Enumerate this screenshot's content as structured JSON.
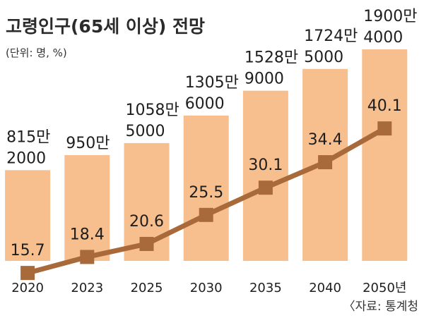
{
  "chart_data": {
    "type": "bar",
    "title": "고령인구(65세 이상) 전망",
    "unit_note": "(단위: 명, %)",
    "source": "〈자료: 통계청",
    "categories": [
      "2020",
      "2023",
      "2025",
      "2030",
      "2035",
      "2040",
      "2050년"
    ],
    "series": [
      {
        "name": "",
        "type": "bar",
        "values": [
          8152000,
          9500000,
          10585000,
          13056000,
          15289000,
          17245000,
          19004000
        ],
        "labels": [
          [
            "815만",
            "2000"
          ],
          [
            "950만",
            ""
          ],
          [
            "1058만",
            "5000"
          ],
          [
            "1305만",
            "6000"
          ],
          [
            "1528만",
            "9000"
          ],
          [
            "1724만",
            "5000"
          ],
          [
            "1900만",
            "4000"
          ]
        ]
      },
      {
        "name": "",
        "type": "line",
        "values": [
          15.7,
          18.4,
          20.6,
          25.5,
          30.1,
          34.4,
          40.1
        ]
      }
    ],
    "colors": {
      "bar": "#F8BF8E",
      "line": "#A86A3A",
      "marker": "#A86A3A",
      "text": "#1e1e1e"
    }
  }
}
